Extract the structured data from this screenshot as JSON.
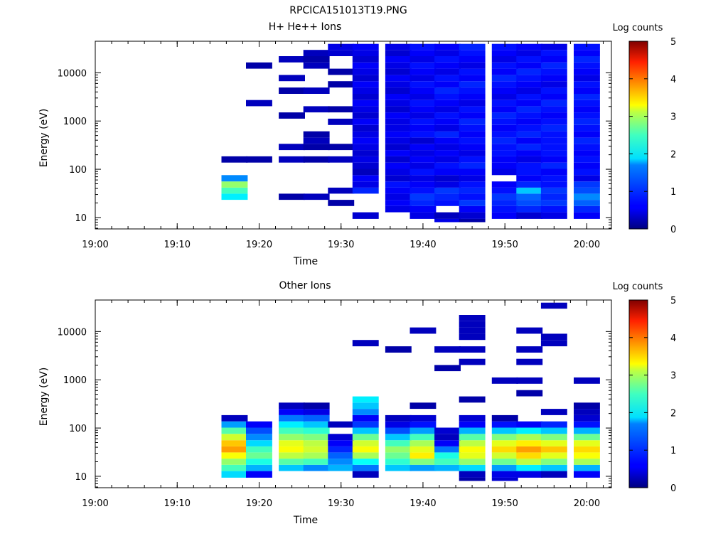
{
  "figure_title": "RPCICA151013T19.PNG",
  "chart_data": [
    {
      "type": "heatmap",
      "title": "H+ He++ Ions",
      "xlabel": "Time",
      "ylabel": "Energy (eV)",
      "y_scale": "log",
      "x_ticks": [
        "19:00",
        "19:10",
        "19:20",
        "19:30",
        "19:40",
        "19:50",
        "20:00"
      ],
      "y_ticks": [
        "10",
        "100",
        "1000",
        "10000"
      ],
      "colorbar": {
        "label": "Log counts",
        "ticks": [
          "0",
          "1",
          "2",
          "3",
          "4",
          "5"
        ],
        "range": [
          0,
          5
        ]
      },
      "time_bins": [
        "19:17",
        "19:20",
        "19:24",
        "19:27",
        "19:30",
        "19:33",
        "19:37",
        "19:40",
        "19:43",
        "19:46",
        "19:50",
        "19:53",
        "19:56",
        "20:00"
      ],
      "energy_bins_eV": [
        8,
        11,
        15,
        20,
        27,
        36,
        48,
        65,
        88,
        118,
        160,
        215,
        290,
        390,
        525,
        710,
        960,
        1300,
        1750,
        2350,
        3150,
        4250,
        5750,
        7750,
        10450,
        14100,
        19000,
        25600,
        34500
      ],
      "log_counts": [
        [
          0,
          0,
          0,
          0,
          0,
          0,
          0,
          0,
          0.5,
          0.2,
          0,
          0,
          0,
          0
        ],
        [
          0,
          0,
          0,
          0,
          0,
          0.4,
          0,
          0.5,
          0.3,
          0.4,
          0.6,
          0.4,
          0.5,
          0.6
        ],
        [
          0,
          0,
          0,
          0,
          0,
          0,
          0.5,
          0.6,
          0,
          0.6,
          0.7,
          0.8,
          0.7,
          0.8
        ],
        [
          0,
          0,
          0,
          0,
          0.2,
          0,
          0.6,
          0.8,
          0.7,
          0.9,
          0.8,
          1.0,
          0.9,
          1.1
        ],
        [
          1.8,
          0,
          0.2,
          0.3,
          0,
          0,
          0.5,
          0.9,
          0.8,
          0.7,
          0.9,
          1.1,
          0.8,
          1.3
        ],
        [
          2.2,
          0,
          0,
          0,
          0.3,
          0.8,
          0.6,
          0.7,
          0.9,
          0.8,
          0.7,
          1.6,
          0.9,
          1.0
        ],
        [
          2.6,
          0,
          0,
          0,
          0,
          0.5,
          0.7,
          0.6,
          0.5,
          0.7,
          0.6,
          0.8,
          0.7,
          0.9
        ],
        [
          1.3,
          0,
          0,
          0,
          0,
          0.6,
          0.4,
          0.5,
          0.4,
          0.5,
          0,
          0.6,
          0.7,
          0.5
        ],
        [
          0,
          0,
          0,
          0,
          0,
          0.3,
          0.5,
          0.7,
          0.6,
          0.6,
          0.5,
          0.7,
          0.6,
          0.7
        ],
        [
          0,
          0,
          0,
          0,
          0,
          0.4,
          0.6,
          0.5,
          0.7,
          0.8,
          0.6,
          0.7,
          0.8,
          0.6
        ],
        [
          0.2,
          0.2,
          0.3,
          0.2,
          0.3,
          0.5,
          0.4,
          0.6,
          0.5,
          0.7,
          0.6,
          0.5,
          0.6,
          0.7
        ],
        [
          0,
          0,
          0,
          0,
          0,
          0.4,
          0.6,
          0.5,
          0.6,
          0.5,
          0.7,
          0.6,
          0.7,
          0.6
        ],
        [
          0,
          0,
          0.3,
          0.2,
          0.2,
          0.5,
          0.4,
          0.6,
          0.5,
          0.6,
          0.7,
          0.8,
          0.7,
          0.7
        ],
        [
          0,
          0,
          0,
          0.3,
          0,
          0.6,
          0.5,
          0.4,
          0.6,
          0.7,
          0.8,
          0.6,
          0.7,
          0.8
        ],
        [
          0,
          0,
          0,
          0.2,
          0,
          0.5,
          0.6,
          0.7,
          0.8,
          0.6,
          0.7,
          0.8,
          0.7,
          0.6
        ],
        [
          0,
          0,
          0,
          0,
          0,
          0.4,
          0.5,
          0.6,
          0.5,
          0.7,
          0.6,
          0.7,
          0.8,
          0.7
        ],
        [
          0,
          0,
          0,
          0,
          0.3,
          0.6,
          0.5,
          0.7,
          0.6,
          0.8,
          0.7,
          0.6,
          0.7,
          0.8
        ],
        [
          0,
          0,
          0.2,
          0,
          0,
          0.4,
          0.6,
          0.5,
          0.7,
          0.6,
          0.8,
          0.7,
          0.6,
          0.7
        ],
        [
          0,
          0,
          0,
          0.3,
          0.2,
          0.5,
          0.4,
          0.6,
          0.5,
          0.7,
          0.6,
          0.8,
          0.7,
          0.6
        ],
        [
          0,
          0.3,
          0,
          0,
          0,
          0.6,
          0.5,
          0.7,
          0.6,
          0.5,
          0.7,
          0.6,
          0.8,
          0.7
        ],
        [
          0,
          0,
          0,
          0,
          0,
          0.4,
          0.6,
          0.5,
          0.7,
          0.6,
          0.5,
          0.7,
          0.6,
          0.8
        ],
        [
          0,
          0,
          0.2,
          0.3,
          0,
          0.5,
          0.4,
          0.6,
          0.8,
          0.7,
          0.6,
          0.5,
          0.7,
          0.6
        ],
        [
          0,
          0,
          0,
          0,
          0.2,
          0.6,
          0.5,
          0.7,
          0.6,
          0.8,
          0.7,
          0.6,
          0.5,
          0.7
        ],
        [
          0,
          0,
          0.3,
          0,
          0,
          0.4,
          0.6,
          0.5,
          0.7,
          0.6,
          0.8,
          0.7,
          0.6,
          0.5
        ],
        [
          0,
          0,
          0,
          0,
          0.2,
          0.5,
          0.4,
          0.6,
          0.5,
          0.7,
          0.6,
          0.8,
          0.7,
          0.6
        ],
        [
          0,
          0.2,
          0,
          0.3,
          0,
          0.6,
          0.5,
          0.7,
          0.6,
          0.5,
          0.7,
          0.6,
          0.8,
          0.7
        ],
        [
          0,
          0,
          0.3,
          0.2,
          0,
          0.4,
          0.6,
          0.5,
          0.7,
          0.6,
          0.5,
          0.7,
          0.6,
          0.8
        ],
        [
          0,
          0,
          0,
          0.3,
          0.4,
          0.5,
          0.4,
          0.6,
          0.5,
          0.7,
          0.6,
          0.5,
          0.7,
          0.6
        ],
        [
          0,
          0,
          0,
          0,
          0.5,
          0.6,
          0.5,
          0.7,
          0.6,
          0.8,
          0.7,
          0.6,
          0.5,
          0.7
        ]
      ]
    },
    {
      "type": "heatmap",
      "title": "Other Ions",
      "xlabel": "Time",
      "ylabel": "Energy (eV)",
      "y_scale": "log",
      "x_ticks": [
        "19:00",
        "19:10",
        "19:20",
        "19:30",
        "19:40",
        "19:50",
        "20:00"
      ],
      "y_ticks": [
        "10",
        "100",
        "1000",
        "10000"
      ],
      "colorbar": {
        "label": "Log counts",
        "ticks": [
          "0",
          "1",
          "2",
          "3",
          "4",
          "5"
        ],
        "range": [
          0,
          5
        ]
      },
      "time_bins": [
        "19:17",
        "19:20",
        "19:24",
        "19:27",
        "19:30",
        "19:33",
        "19:37",
        "19:40",
        "19:43",
        "19:46",
        "19:50",
        "19:53",
        "19:56",
        "20:00"
      ],
      "energy_bins_eV": [
        8,
        11,
        15,
        20,
        27,
        36,
        48,
        65,
        88,
        118,
        160,
        215,
        290,
        390,
        525,
        710,
        960,
        1300,
        1750,
        2350,
        3150,
        4250,
        5750,
        7750,
        10450,
        14100,
        19000,
        25600,
        34500
      ],
      "log_counts": [
        [
          0,
          0,
          0,
          0,
          0,
          0,
          0,
          0,
          0,
          0.2,
          0.4,
          0,
          0,
          0
        ],
        [
          1.7,
          0.6,
          0,
          0,
          0,
          0.3,
          0,
          0,
          0,
          0.3,
          0.5,
          0.5,
          0.3,
          0.6
        ],
        [
          2.2,
          1.5,
          1.6,
          1.3,
          1.5,
          1.2,
          1.6,
          1.4,
          1.5,
          1.7,
          1.4,
          1.8,
          1.6,
          1.5
        ],
        [
          2.6,
          2.0,
          2.3,
          2.2,
          1.3,
          1.9,
          2.1,
          2.5,
          2.2,
          2.6,
          2.4,
          2.8,
          2.5,
          2.7
        ],
        [
          3.1,
          2.4,
          2.8,
          2.7,
          1.1,
          2.7,
          2.4,
          3.2,
          2.0,
          3.0,
          2.9,
          3.3,
          3.0,
          3.1
        ],
        [
          3.6,
          2.2,
          3.1,
          2.9,
          0.8,
          3.1,
          2.6,
          3.0,
          1.2,
          3.1,
          3.3,
          3.6,
          3.4,
          3.3
        ],
        [
          3.4,
          1.7,
          3.0,
          2.8,
          0.6,
          2.9,
          2.2,
          2.7,
          0.6,
          2.8,
          3.0,
          3.2,
          3.0,
          3.0
        ],
        [
          2.9,
          1.3,
          2.6,
          2.5,
          0.4,
          2.4,
          1.6,
          2.2,
          0.3,
          2.3,
          2.5,
          2.7,
          2.5,
          2.4
        ],
        [
          2.3,
          1.0,
          2.2,
          2.1,
          0,
          1.6,
          1.0,
          1.4,
          0.4,
          1.5,
          1.6,
          1.8,
          1.6,
          1.5
        ],
        [
          1.4,
          0.6,
          1.8,
          1.6,
          0.3,
          0.9,
          0.5,
          0.7,
          0,
          0.6,
          0.7,
          0.6,
          0.8,
          0.7
        ],
        [
          0.3,
          0,
          1.2,
          1.1,
          0,
          0.6,
          0.3,
          0.4,
          0,
          0.4,
          0.2,
          0,
          0,
          0.4
        ],
        [
          0,
          0,
          0.6,
          0.5,
          0,
          1.3,
          0,
          0,
          0,
          0,
          0,
          0,
          0.3,
          0.3
        ],
        [
          0,
          0,
          0.3,
          0.2,
          0,
          1.6,
          0,
          0.2,
          0,
          0,
          0,
          0,
          0,
          0.2
        ],
        [
          0,
          0,
          0,
          0,
          0,
          1.8,
          0,
          0,
          0,
          0.2,
          0,
          0,
          0,
          0
        ],
        [
          0,
          0,
          0,
          0,
          0,
          0,
          0,
          0,
          0,
          0,
          0,
          0.2,
          0,
          0
        ],
        [
          0,
          0,
          0,
          0,
          0,
          0,
          0,
          0,
          0,
          0,
          0,
          0,
          0,
          0
        ],
        [
          0,
          0,
          0,
          0,
          0,
          0,
          0,
          0,
          0,
          0,
          0.3,
          0.3,
          0,
          0.3
        ],
        [
          0,
          0,
          0,
          0,
          0,
          0,
          0,
          0,
          0,
          0,
          0,
          0,
          0,
          0
        ],
        [
          0,
          0,
          0,
          0,
          0,
          0,
          0,
          0,
          0.2,
          0,
          0,
          0,
          0,
          0
        ],
        [
          0,
          0,
          0,
          0,
          0,
          0,
          0,
          0,
          0,
          0.3,
          0,
          0.3,
          0,
          0
        ],
        [
          0,
          0,
          0,
          0,
          0,
          0,
          0,
          0,
          0,
          0,
          0,
          0,
          0,
          0
        ],
        [
          0,
          0,
          0,
          0,
          0,
          0,
          0.2,
          0,
          0.3,
          0.3,
          0,
          0.3,
          0,
          0
        ],
        [
          0,
          0,
          0,
          0,
          0,
          0.3,
          0,
          0,
          0,
          0,
          0,
          0,
          0.3,
          0
        ],
        [
          0,
          0,
          0,
          0,
          0,
          0,
          0,
          0,
          0,
          0.3,
          0,
          0,
          0.3,
          0
        ],
        [
          0,
          0,
          0,
          0,
          0,
          0,
          0,
          0.3,
          0,
          0.3,
          0,
          0.3,
          0,
          0
        ],
        [
          0,
          0,
          0,
          0,
          0,
          0,
          0,
          0,
          0,
          0.3,
          0,
          0,
          0,
          0
        ],
        [
          0,
          0,
          0,
          0,
          0,
          0,
          0,
          0,
          0,
          0.3,
          0,
          0,
          0,
          0
        ],
        [
          0,
          0,
          0,
          0,
          0,
          0,
          0,
          0,
          0,
          0,
          0,
          0,
          0,
          0
        ],
        [
          0,
          0,
          0,
          0,
          0,
          0,
          0,
          0,
          0,
          0,
          0,
          0,
          0.3,
          0
        ]
      ]
    }
  ]
}
